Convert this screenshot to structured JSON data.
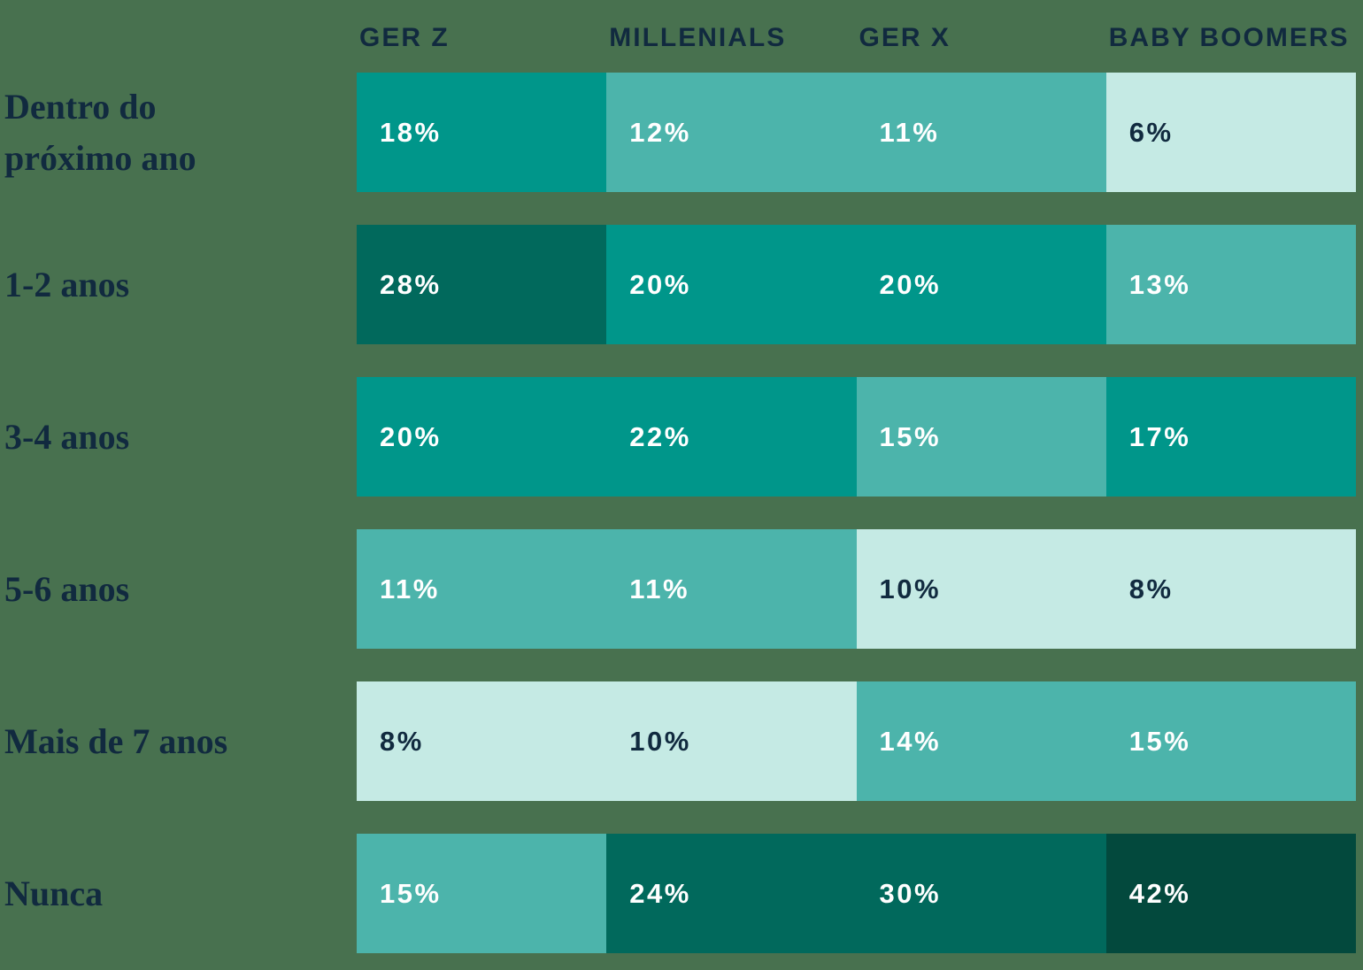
{
  "colors": {
    "background": "#48714F",
    "text_navy": "#112A3F",
    "text_white": "#FFFFFF",
    "scale_lightest": "#C5EAE4",
    "scale_medium": "#4CB4AB",
    "scale_teal": "#00968A",
    "scale_dark": "#01695C",
    "scale_darkest": "#03493D"
  },
  "chart_data": {
    "type": "heatmap",
    "unit": "%",
    "legend_position": "none",
    "grid": false,
    "columns": [
      "GER Z",
      "MILLENIALS",
      "GER X",
      "BABY BOOMERS"
    ],
    "rows": [
      {
        "label": "Dentro do\npróximo ano",
        "values": [
          18,
          12,
          11,
          6
        ],
        "display": [
          "18%",
          "12%",
          "11%",
          "6%"
        ],
        "levels": [
          3,
          2,
          2,
          1
        ]
      },
      {
        "label": "1-2 anos",
        "values": [
          28,
          20,
          20,
          13
        ],
        "display": [
          "28%",
          "20%",
          "20%",
          "13%"
        ],
        "levels": [
          4,
          3,
          3,
          2
        ]
      },
      {
        "label": "3-4 anos",
        "values": [
          20,
          22,
          15,
          17
        ],
        "display": [
          "20%",
          "22%",
          "15%",
          "17%"
        ],
        "levels": [
          3,
          3,
          2,
          3
        ]
      },
      {
        "label": "5-6 anos",
        "values": [
          11,
          11,
          10,
          8
        ],
        "display": [
          "11%",
          "11%",
          "10%",
          "8%"
        ],
        "levels": [
          2,
          2,
          1,
          1
        ]
      },
      {
        "label": "Mais de 7 anos",
        "values": [
          8,
          10,
          14,
          15
        ],
        "display": [
          "8%",
          "10%",
          "14%",
          "15%"
        ],
        "levels": [
          1,
          1,
          2,
          2
        ]
      },
      {
        "label": "Nunca",
        "values": [
          15,
          24,
          30,
          42
        ],
        "display": [
          "15%",
          "24%",
          "30%",
          "42%"
        ],
        "levels": [
          2,
          4,
          4,
          5
        ]
      }
    ]
  }
}
